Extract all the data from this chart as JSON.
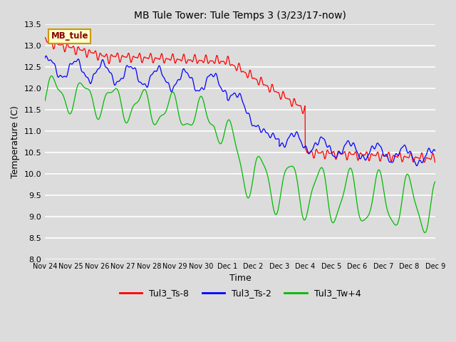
{
  "title": "MB Tule Tower: Tule Temps 3 (3/23/17-now)",
  "xlabel": "Time",
  "ylabel": "Temperature (C)",
  "ylim": [
    8.0,
    13.5
  ],
  "yticks": [
    8.0,
    8.5,
    9.0,
    9.5,
    10.0,
    10.5,
    11.0,
    11.5,
    12.0,
    12.5,
    13.0,
    13.5
  ],
  "bg_color": "#dcdcdc",
  "plot_bg_color": "#dcdcdc",
  "grid_color": "#ffffff",
  "legend_entries": [
    "Tul3_Ts-8",
    "Tul3_Ts-2",
    "Tul3_Tw+4"
  ],
  "line_colors": [
    "#ff0000",
    "#0000ff",
    "#00bb00"
  ],
  "xtick_labels": [
    "Nov 24",
    "Nov 25",
    "Nov 26",
    "Nov 27",
    "Nov 28",
    "Nov 29",
    "Nov 30",
    "Dec 1",
    "Dec 2",
    "Dec 3",
    "Dec 4",
    "Dec 5",
    "Dec 6",
    "Dec 7",
    "Dec 8",
    "Dec 9"
  ],
  "watermark_text": "MB_tule",
  "watermark_bg": "#ffffcc",
  "watermark_border": "#cc9900",
  "figsize": [
    6.4,
    4.8
  ],
  "dpi": 100
}
